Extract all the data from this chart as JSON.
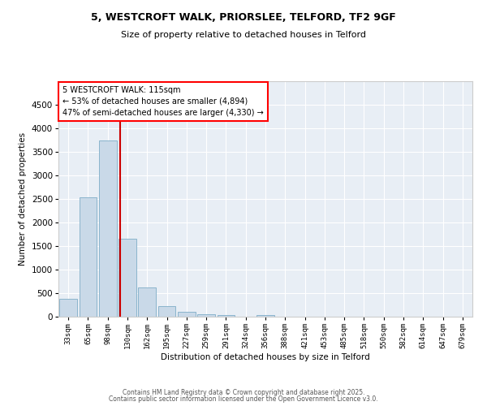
{
  "title1": "5, WESTCROFT WALK, PRIORSLEE, TELFORD, TF2 9GF",
  "title2": "Size of property relative to detached houses in Telford",
  "xlabel": "Distribution of detached houses by size in Telford",
  "ylabel": "Number of detached properties",
  "categories": [
    "33sqm",
    "65sqm",
    "98sqm",
    "130sqm",
    "162sqm",
    "195sqm",
    "227sqm",
    "259sqm",
    "291sqm",
    "324sqm",
    "356sqm",
    "388sqm",
    "421sqm",
    "453sqm",
    "485sqm",
    "518sqm",
    "550sqm",
    "582sqm",
    "614sqm",
    "647sqm",
    "679sqm"
  ],
  "bar_values": [
    380,
    2530,
    3750,
    1660,
    620,
    225,
    100,
    50,
    40,
    0,
    40,
    0,
    0,
    0,
    0,
    0,
    0,
    0,
    0,
    0,
    0
  ],
  "bar_color": "#c9d9e8",
  "bar_edgecolor": "#8ab4cc",
  "vline_x": 2.62,
  "vline_color": "#cc0000",
  "ylim": [
    0,
    5000
  ],
  "yticks": [
    0,
    500,
    1000,
    1500,
    2000,
    2500,
    3000,
    3500,
    4000,
    4500
  ],
  "annotation_text": "5 WESTCROFT WALK: 115sqm\n← 53% of detached houses are smaller (4,894)\n47% of semi-detached houses are larger (4,330) →",
  "background_color": "#e8eef5",
  "footer1": "Contains HM Land Registry data © Crown copyright and database right 2025.",
  "footer2": "Contains public sector information licensed under the Open Government Licence v3.0."
}
